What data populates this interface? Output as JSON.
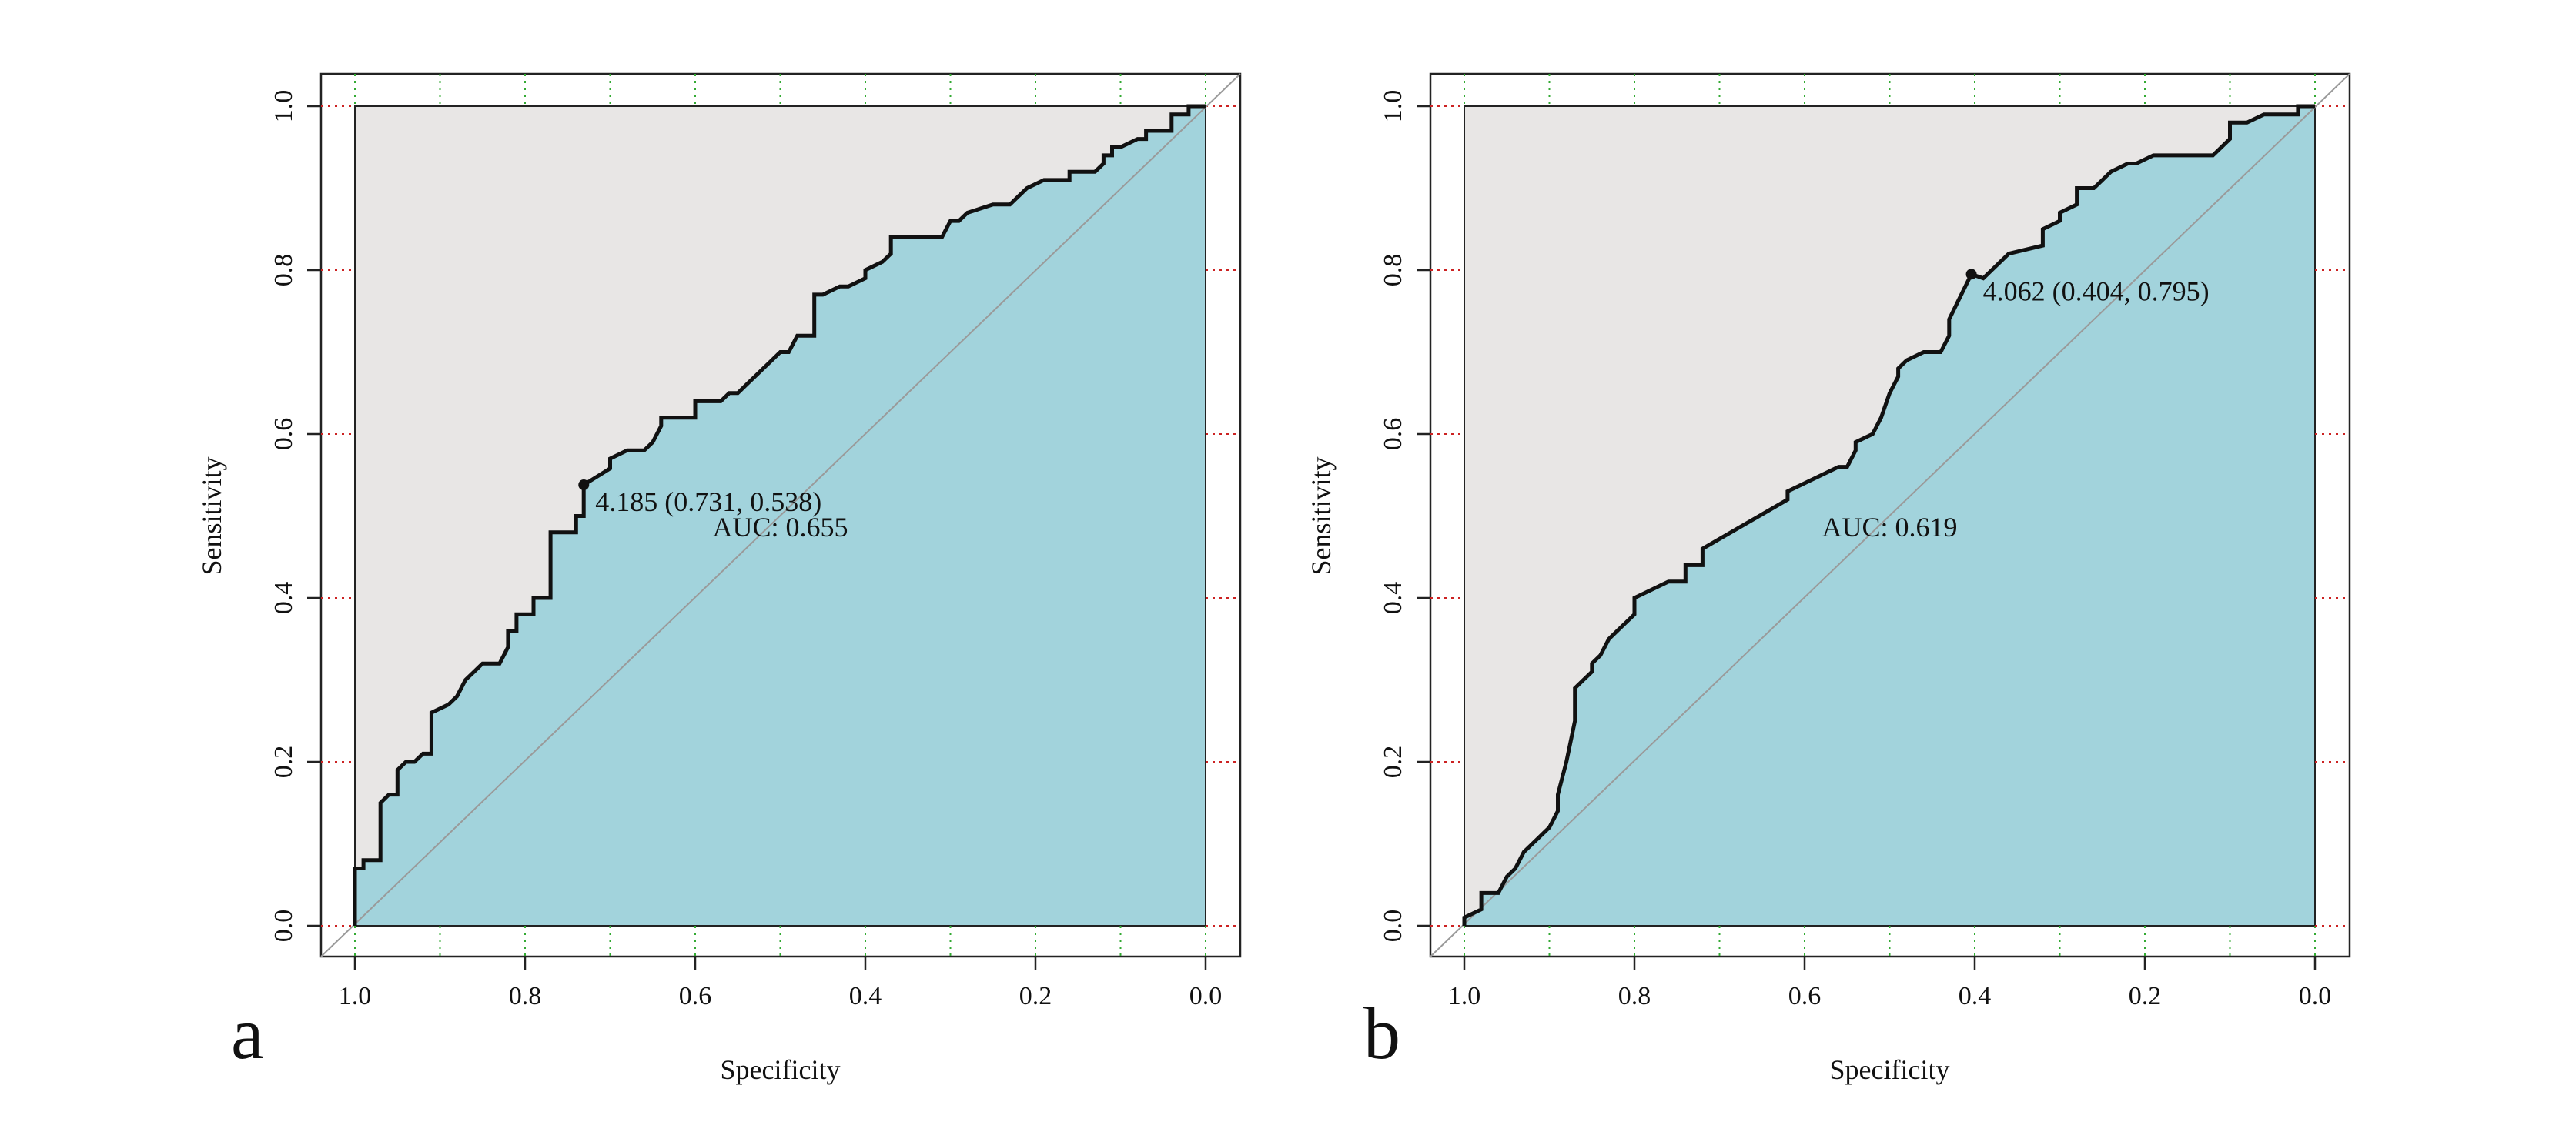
{
  "chart_data": [
    {
      "type": "line",
      "panel_label": "a",
      "xlabel": "Specificity",
      "ylabel": "Sensitivity",
      "xlim": [
        1.0,
        0.0
      ],
      "ylim": [
        0.0,
        1.0
      ],
      "x_reversed": true,
      "x_ticks": [
        "1.0",
        "0.8",
        "0.6",
        "0.4",
        "0.2",
        "0.0"
      ],
      "y_ticks": [
        "0.0",
        "0.2",
        "0.4",
        "0.6",
        "0.8",
        "1.0"
      ],
      "grid": "dotted",
      "colors": {
        "auc_fill": "#a2d3dc",
        "above_fill": "#e8e6e5",
        "curve": "#111111",
        "diagonal": "#9a9a9a",
        "grid_x": "#33aa33",
        "grid_y": "#cc2222"
      },
      "auc_label": "AUC: 0.655",
      "threshold": {
        "specificity": 0.731,
        "sensitivity": 0.538,
        "label": "4.185 (0.731, 0.538)"
      },
      "series": [
        {
          "specificity": [
            1.0,
            1.0,
            0.99,
            0.99,
            0.97,
            0.97,
            0.96,
            0.95,
            0.95,
            0.94,
            0.93,
            0.92,
            0.91,
            0.91,
            0.89,
            0.88,
            0.87,
            0.86,
            0.85,
            0.83,
            0.82,
            0.82,
            0.81,
            0.81,
            0.79,
            0.79,
            0.77,
            0.77,
            0.74,
            0.74,
            0.731,
            0.731,
            0.7,
            0.7,
            0.68,
            0.66,
            0.65,
            0.64,
            0.64,
            0.61,
            0.6,
            0.6,
            0.57,
            0.56,
            0.55,
            0.54,
            0.53,
            0.52,
            0.51,
            0.5,
            0.49,
            0.48,
            0.46,
            0.46,
            0.45,
            0.43,
            0.42,
            0.4,
            0.4,
            0.38,
            0.37,
            0.37,
            0.31,
            0.3,
            0.29,
            0.28,
            0.25,
            0.23,
            0.22,
            0.21,
            0.19,
            0.16,
            0.16,
            0.13,
            0.12,
            0.12,
            0.11,
            0.11,
            0.1,
            0.08,
            0.07,
            0.07,
            0.04,
            0.04,
            0.02,
            0.02,
            0.0
          ],
          "sensitivity": [
            0.0,
            0.07,
            0.07,
            0.08,
            0.08,
            0.15,
            0.16,
            0.16,
            0.19,
            0.2,
            0.2,
            0.21,
            0.21,
            0.26,
            0.27,
            0.28,
            0.3,
            0.31,
            0.32,
            0.32,
            0.34,
            0.36,
            0.36,
            0.38,
            0.38,
            0.4,
            0.4,
            0.48,
            0.48,
            0.5,
            0.5,
            0.538,
            0.558,
            0.57,
            0.58,
            0.58,
            0.59,
            0.61,
            0.62,
            0.62,
            0.62,
            0.64,
            0.64,
            0.65,
            0.65,
            0.66,
            0.67,
            0.68,
            0.69,
            0.7,
            0.7,
            0.72,
            0.72,
            0.77,
            0.77,
            0.78,
            0.78,
            0.79,
            0.8,
            0.81,
            0.82,
            0.84,
            0.84,
            0.86,
            0.86,
            0.87,
            0.88,
            0.88,
            0.89,
            0.9,
            0.91,
            0.91,
            0.92,
            0.92,
            0.93,
            0.94,
            0.94,
            0.95,
            0.95,
            0.96,
            0.96,
            0.97,
            0.97,
            0.99,
            0.99,
            1.0,
            1.0
          ]
        }
      ]
    },
    {
      "type": "line",
      "panel_label": "b",
      "xlabel": "Specificity",
      "ylabel": "Sensitivity",
      "xlim": [
        1.0,
        0.0
      ],
      "ylim": [
        0.0,
        1.0
      ],
      "x_reversed": true,
      "x_ticks": [
        "1.0",
        "0.8",
        "0.6",
        "0.4",
        "0.2",
        "0.0"
      ],
      "y_ticks": [
        "0.0",
        "0.2",
        "0.4",
        "0.6",
        "0.8",
        "1.0"
      ],
      "grid": "dotted",
      "colors": {
        "auc_fill": "#a2d3dc",
        "above_fill": "#e8e6e5",
        "curve": "#111111",
        "diagonal": "#9a9a9a",
        "grid_x": "#33aa33",
        "grid_y": "#cc2222"
      },
      "auc_label": "AUC: 0.619",
      "threshold": {
        "specificity": 0.404,
        "sensitivity": 0.795,
        "label": "4.062 (0.404, 0.795)"
      },
      "series": [
        {
          "specificity": [
            1.0,
            1.0,
            0.98,
            0.98,
            0.96,
            0.95,
            0.94,
            0.93,
            0.92,
            0.91,
            0.9,
            0.89,
            0.89,
            0.88,
            0.87,
            0.87,
            0.86,
            0.85,
            0.85,
            0.84,
            0.83,
            0.82,
            0.81,
            0.8,
            0.8,
            0.78,
            0.76,
            0.74,
            0.74,
            0.72,
            0.72,
            0.67,
            0.62,
            0.62,
            0.6,
            0.58,
            0.56,
            0.55,
            0.54,
            0.54,
            0.52,
            0.51,
            0.5,
            0.49,
            0.49,
            0.48,
            0.46,
            0.44,
            0.43,
            0.43,
            0.404,
            0.39,
            0.38,
            0.37,
            0.36,
            0.32,
            0.32,
            0.3,
            0.3,
            0.28,
            0.28,
            0.26,
            0.25,
            0.24,
            0.22,
            0.21,
            0.19,
            0.18,
            0.16,
            0.12,
            0.11,
            0.1,
            0.1,
            0.08,
            0.06,
            0.05,
            0.05,
            0.02,
            0.02,
            0.0
          ],
          "sensitivity": [
            0.0,
            0.01,
            0.02,
            0.04,
            0.04,
            0.06,
            0.07,
            0.09,
            0.1,
            0.11,
            0.12,
            0.14,
            0.16,
            0.2,
            0.25,
            0.29,
            0.3,
            0.31,
            0.32,
            0.33,
            0.35,
            0.36,
            0.37,
            0.38,
            0.4,
            0.41,
            0.42,
            0.42,
            0.44,
            0.44,
            0.46,
            0.49,
            0.52,
            0.53,
            0.54,
            0.55,
            0.56,
            0.56,
            0.58,
            0.59,
            0.6,
            0.62,
            0.65,
            0.67,
            0.68,
            0.69,
            0.7,
            0.7,
            0.72,
            0.74,
            0.795,
            0.79,
            0.8,
            0.81,
            0.82,
            0.83,
            0.85,
            0.86,
            0.87,
            0.88,
            0.9,
            0.9,
            0.91,
            0.92,
            0.93,
            0.93,
            0.94,
            0.94,
            0.94,
            0.94,
            0.95,
            0.96,
            0.98,
            0.98,
            0.99,
            0.99,
            0.99,
            0.99,
            1.0,
            1.0
          ]
        }
      ]
    }
  ]
}
